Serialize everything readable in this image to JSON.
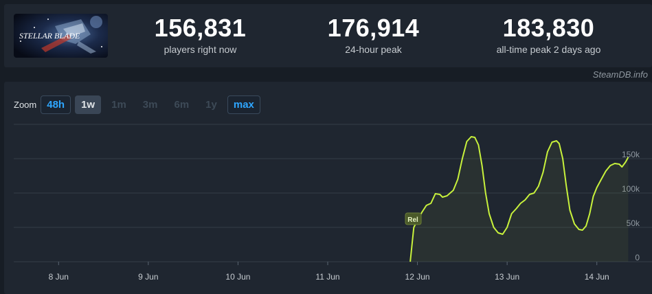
{
  "game": {
    "logo_text": "STELLAR BLADE"
  },
  "stats": [
    {
      "value": "156,831",
      "label": "players right now"
    },
    {
      "value": "176,914",
      "label": "24-hour peak"
    },
    {
      "value": "183,830",
      "label": "all-time peak 2 days ago"
    }
  ],
  "credit": "SteamDB.info",
  "zoom": {
    "label": "Zoom",
    "options": [
      {
        "label": "48h",
        "state": "active"
      },
      {
        "label": "1w",
        "state": "selected"
      },
      {
        "label": "1m",
        "state": "disabled"
      },
      {
        "label": "3m",
        "state": "disabled"
      },
      {
        "label": "6m",
        "state": "disabled"
      },
      {
        "label": "1y",
        "state": "disabled"
      },
      {
        "label": "max",
        "state": "active"
      }
    ]
  },
  "chart_data": {
    "type": "line",
    "x_tick_labels": [
      "8 Jun",
      "9 Jun",
      "10 Jun",
      "11 Jun",
      "12 Jun",
      "13 Jun",
      "14 Jun"
    ],
    "y_tick_labels": [
      "0",
      "50k",
      "100k",
      "150k"
    ],
    "ylim": [
      0,
      200000
    ],
    "grid": true,
    "line_color": "#c8f23c",
    "annotation": {
      "label": "Rel",
      "x_day": 11.95,
      "y": 62000
    },
    "series": [
      {
        "points": [
          [
            11.92,
            0
          ],
          [
            11.94,
            25000
          ],
          [
            11.96,
            50000
          ],
          [
            12.0,
            60000
          ],
          [
            12.05,
            72000
          ],
          [
            12.1,
            82000
          ],
          [
            12.15,
            85000
          ],
          [
            12.2,
            99000
          ],
          [
            12.25,
            98000
          ],
          [
            12.28,
            94000
          ],
          [
            12.33,
            96000
          ],
          [
            12.4,
            104000
          ],
          [
            12.45,
            120000
          ],
          [
            12.5,
            150000
          ],
          [
            12.55,
            175000
          ],
          [
            12.6,
            182000
          ],
          [
            12.64,
            181000
          ],
          [
            12.68,
            170000
          ],
          [
            12.72,
            140000
          ],
          [
            12.76,
            100000
          ],
          [
            12.8,
            70000
          ],
          [
            12.85,
            50000
          ],
          [
            12.9,
            42000
          ],
          [
            12.95,
            40000
          ],
          [
            13.0,
            50000
          ],
          [
            13.05,
            70000
          ],
          [
            13.1,
            77000
          ],
          [
            13.15,
            85000
          ],
          [
            13.2,
            90000
          ],
          [
            13.25,
            98000
          ],
          [
            13.3,
            100000
          ],
          [
            13.35,
            110000
          ],
          [
            13.4,
            130000
          ],
          [
            13.45,
            160000
          ],
          [
            13.5,
            174000
          ],
          [
            13.55,
            176000
          ],
          [
            13.58,
            172000
          ],
          [
            13.62,
            150000
          ],
          [
            13.66,
            110000
          ],
          [
            13.7,
            75000
          ],
          [
            13.75,
            55000
          ],
          [
            13.8,
            47000
          ],
          [
            13.84,
            46000
          ],
          [
            13.88,
            52000
          ],
          [
            13.92,
            70000
          ],
          [
            13.96,
            95000
          ],
          [
            14.0,
            108000
          ],
          [
            14.05,
            120000
          ],
          [
            14.1,
            132000
          ],
          [
            14.15,
            140000
          ],
          [
            14.2,
            143000
          ],
          [
            14.25,
            142000
          ],
          [
            14.28,
            138000
          ],
          [
            14.32,
            145000
          ],
          [
            14.35,
            152000
          ]
        ]
      }
    ]
  }
}
